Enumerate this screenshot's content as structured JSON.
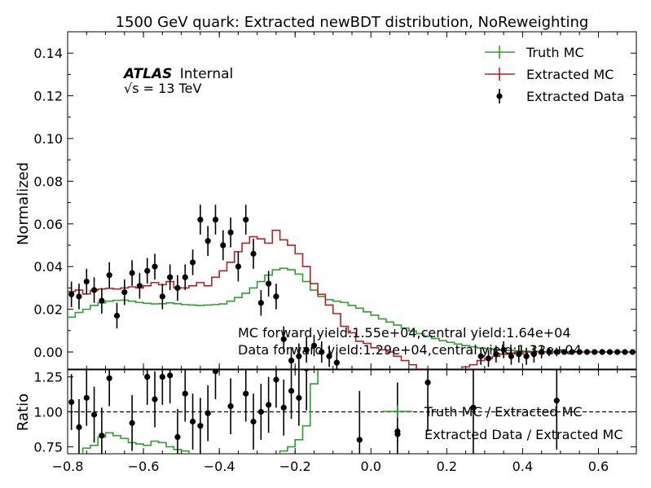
{
  "chart_data": [
    {
      "panel": "main",
      "type": "line",
      "title": "1500 GeV quark: Extracted newBDT distribution, NoReweighting",
      "xlabel": "",
      "ylabel": "Normalized",
      "xlim": [
        -0.8,
        0.7
      ],
      "ylim": [
        -0.008,
        0.15
      ],
      "x_ticks": [
        "−0.8",
        "−0.6",
        "−0.4",
        "−0.2",
        "0.0",
        "0.2",
        "0.4",
        "0.6"
      ],
      "y_ticks": [
        "0.00",
        "0.02",
        "0.04",
        "0.06",
        "0.08",
        "0.10",
        "0.12",
        "0.14"
      ],
      "legend_position": "top-right",
      "legend": [
        "Truth MC",
        "Extracted MC",
        "Extracted Data"
      ],
      "atlas_label": "ATLAS",
      "atlas_status": "Internal",
      "energy_label": "√s = 13 TeV",
      "annotations": [
        "MC forward yield:1.55e+04,central yield:1.64e+04",
        "Data forward yield:1.29e+04,central yield:1.32e+04"
      ],
      "series": [
        {
          "name": "Truth MC",
          "color": "#2ca02c",
          "style": "step",
          "bin_edges": [
            -0.8,
            -0.78,
            -0.76,
            -0.74,
            -0.72,
            -0.7,
            -0.68,
            -0.66,
            -0.64,
            -0.62,
            -0.6,
            -0.58,
            -0.56,
            -0.54,
            -0.52,
            -0.5,
            -0.48,
            -0.46,
            -0.44,
            -0.42,
            -0.4,
            -0.38,
            -0.36,
            -0.34,
            -0.32,
            -0.3,
            -0.28,
            -0.26,
            -0.24,
            -0.22,
            -0.2,
            -0.18,
            -0.16,
            -0.14,
            -0.12,
            -0.1,
            -0.08,
            -0.06,
            -0.04,
            -0.02,
            0.0,
            0.02,
            0.04,
            0.06,
            0.08,
            0.1,
            0.12,
            0.14,
            0.16,
            0.18,
            0.2,
            0.22,
            0.24,
            0.26,
            0.28,
            0.3,
            0.32,
            0.34,
            0.36,
            0.38,
            0.4,
            0.42,
            0.44,
            0.46,
            0.48,
            0.5,
            0.52,
            0.54,
            0.56,
            0.58,
            0.6,
            0.62,
            0.64,
            0.66,
            0.68,
            0.7
          ],
          "values": [
            0.0163,
            0.0185,
            0.02,
            0.0218,
            0.023,
            0.0238,
            0.0242,
            0.0243,
            0.0238,
            0.0232,
            0.0228,
            0.0225,
            0.0226,
            0.023,
            0.0226,
            0.0222,
            0.022,
            0.0218,
            0.022,
            0.0222,
            0.0225,
            0.0238,
            0.0255,
            0.0275,
            0.03,
            0.033,
            0.036,
            0.0385,
            0.0392,
            0.0385,
            0.0365,
            0.033,
            0.029,
            0.026,
            0.0245,
            0.0238,
            0.0232,
            0.0218,
            0.0205,
            0.0188,
            0.0172,
            0.0155,
            0.014,
            0.0126,
            0.0112,
            0.0098,
            0.0086,
            0.0074,
            0.0063,
            0.0053,
            0.0045,
            0.0037,
            0.003,
            0.0024,
            0.0019,
            0.0015,
            0.0012,
            0.0009,
            0.0007,
            0.0005,
            0.0004,
            0.0003,
            0.0002,
            0.0001,
            0.0001,
            0.0001,
            0.0,
            0.0,
            0.0,
            0.0,
            0.0,
            0.0,
            0.0,
            0.0,
            0.0
          ]
        },
        {
          "name": "Extracted MC",
          "color": "#b22222",
          "style": "step",
          "bin_edges": [
            -0.8,
            -0.78,
            -0.76,
            -0.74,
            -0.72,
            -0.7,
            -0.68,
            -0.66,
            -0.64,
            -0.62,
            -0.6,
            -0.58,
            -0.56,
            -0.54,
            -0.52,
            -0.5,
            -0.48,
            -0.46,
            -0.44,
            -0.42,
            -0.4,
            -0.38,
            -0.36,
            -0.34,
            -0.32,
            -0.3,
            -0.28,
            -0.26,
            -0.24,
            -0.22,
            -0.2,
            -0.18,
            -0.16,
            -0.14,
            -0.12,
            -0.1,
            -0.08,
            -0.06,
            -0.04,
            -0.02,
            0.0,
            0.02,
            0.04,
            0.06,
            0.08,
            0.1,
            0.12,
            0.14,
            0.16,
            0.18,
            0.2,
            0.22,
            0.24,
            0.26,
            0.28,
            0.3,
            0.32,
            0.34,
            0.36,
            0.38,
            0.4,
            0.42,
            0.44,
            0.46,
            0.48,
            0.5,
            0.52,
            0.54,
            0.56,
            0.58,
            0.6,
            0.62,
            0.64,
            0.66,
            0.68,
            0.7
          ],
          "values": [
            0.0283,
            0.029,
            0.0272,
            0.0288,
            0.0295,
            0.0298,
            0.0295,
            0.03,
            0.0305,
            0.03,
            0.031,
            0.0325,
            0.0315,
            0.033,
            0.03,
            0.03,
            0.031,
            0.0325,
            0.031,
            0.035,
            0.038,
            0.042,
            0.047,
            0.051,
            0.054,
            0.053,
            0.051,
            0.057,
            0.0525,
            0.05,
            0.046,
            0.04,
            0.032,
            0.027,
            0.022,
            0.018,
            0.012,
            0.009,
            0.005,
            0.004,
            0.002,
            0.001,
            0.0,
            -0.002,
            -0.004,
            -0.006,
            -0.008,
            -0.01,
            -0.012,
            -0.012,
            -0.011,
            -0.009,
            -0.007,
            -0.006,
            -0.004,
            -0.003,
            -0.002,
            -0.001,
            -0.0005,
            0.0,
            0.0,
            0.0,
            0.0,
            0.0,
            0.0,
            0.0,
            0.0,
            0.0,
            0.0,
            0.0,
            0.0,
            0.0,
            0.0,
            0.0,
            0.0
          ]
        },
        {
          "name": "Extracted Data",
          "color": "#000000",
          "style": "errorbar",
          "points": [
            {
              "x": -0.79,
              "y": 0.027,
              "err": 0.006
            },
            {
              "x": -0.77,
              "y": 0.026,
              "err": 0.006
            },
            {
              "x": -0.75,
              "y": 0.033,
              "err": 0.006
            },
            {
              "x": -0.73,
              "y": 0.029,
              "err": 0.006
            },
            {
              "x": -0.71,
              "y": 0.024,
              "err": 0.006
            },
            {
              "x": -0.69,
              "y": 0.036,
              "err": 0.006
            },
            {
              "x": -0.67,
              "y": 0.017,
              "err": 0.006
            },
            {
              "x": -0.65,
              "y": 0.028,
              "err": 0.006
            },
            {
              "x": -0.63,
              "y": 0.037,
              "err": 0.006
            },
            {
              "x": -0.61,
              "y": 0.031,
              "err": 0.006
            },
            {
              "x": -0.59,
              "y": 0.038,
              "err": 0.006
            },
            {
              "x": -0.57,
              "y": 0.04,
              "err": 0.006
            },
            {
              "x": -0.55,
              "y": 0.026,
              "err": 0.006
            },
            {
              "x": -0.53,
              "y": 0.035,
              "err": 0.006
            },
            {
              "x": -0.51,
              "y": 0.03,
              "err": 0.006
            },
            {
              "x": -0.49,
              "y": 0.035,
              "err": 0.006
            },
            {
              "x": -0.47,
              "y": 0.042,
              "err": 0.006
            },
            {
              "x": -0.45,
              "y": 0.062,
              "err": 0.007
            },
            {
              "x": -0.43,
              "y": 0.052,
              "err": 0.007
            },
            {
              "x": -0.41,
              "y": 0.062,
              "err": 0.007
            },
            {
              "x": -0.39,
              "y": 0.05,
              "err": 0.007
            },
            {
              "x": -0.37,
              "y": 0.056,
              "err": 0.007
            },
            {
              "x": -0.35,
              "y": 0.04,
              "err": 0.007
            },
            {
              "x": -0.33,
              "y": 0.062,
              "err": 0.007
            },
            {
              "x": -0.31,
              "y": 0.046,
              "err": 0.007
            },
            {
              "x": -0.29,
              "y": 0.023,
              "err": 0.006
            },
            {
              "x": -0.27,
              "y": 0.032,
              "err": 0.006
            },
            {
              "x": -0.25,
              "y": 0.026,
              "err": 0.006
            },
            {
              "x": -0.23,
              "y": 0.006,
              "err": 0.006
            },
            {
              "x": -0.21,
              "y": -0.004,
              "err": 0.006
            },
            {
              "x": -0.19,
              "y": -0.002,
              "err": 0.006
            },
            {
              "x": -0.17,
              "y": 0.001,
              "err": 0.006
            },
            {
              "x": -0.15,
              "y": 0.003,
              "err": 0.005
            },
            {
              "x": -0.13,
              "y": 0.0,
              "err": 0.005
            },
            {
              "x": -0.11,
              "y": -0.002,
              "err": 0.005
            },
            {
              "x": -0.09,
              "y": -0.005,
              "err": 0.005
            },
            {
              "x": 0.29,
              "y": -0.002,
              "err": 0.004
            },
            {
              "x": 0.31,
              "y": -0.003,
              "err": 0.004
            },
            {
              "x": 0.33,
              "y": -0.001,
              "err": 0.004
            },
            {
              "x": 0.35,
              "y": 0.001,
              "err": 0.004
            },
            {
              "x": 0.37,
              "y": -0.002,
              "err": 0.004
            },
            {
              "x": 0.39,
              "y": -0.001,
              "err": 0.004
            },
            {
              "x": 0.41,
              "y": -0.002,
              "err": 0.004
            },
            {
              "x": 0.43,
              "y": -0.001,
              "err": 0.004
            },
            {
              "x": 0.45,
              "y": 0.0,
              "err": 0.003
            },
            {
              "x": 0.47,
              "y": 0.0,
              "err": 0.002
            },
            {
              "x": 0.49,
              "y": 0.0,
              "err": 0.002
            },
            {
              "x": 0.51,
              "y": 0.0,
              "err": 0.001
            },
            {
              "x": 0.53,
              "y": 0.0,
              "err": 0.001
            },
            {
              "x": 0.55,
              "y": 0.0,
              "err": 0.001
            },
            {
              "x": 0.57,
              "y": 0.0,
              "err": 0.001
            },
            {
              "x": 0.59,
              "y": 0.0,
              "err": 0.001
            },
            {
              "x": 0.61,
              "y": 0.0,
              "err": 0.001
            },
            {
              "x": 0.63,
              "y": 0.0,
              "err": 0.001
            },
            {
              "x": 0.65,
              "y": 0.0,
              "err": 0.001
            },
            {
              "x": 0.67,
              "y": 0.0,
              "err": 0.001
            },
            {
              "x": 0.69,
              "y": 0.0,
              "err": 0.001
            }
          ]
        }
      ]
    },
    {
      "panel": "ratio",
      "type": "line",
      "xlabel": "",
      "ylabel": "Ratio",
      "xlim": [
        -0.8,
        0.7
      ],
      "ylim": [
        0.7,
        1.3
      ],
      "y_ticks": [
        "0.75",
        "1.00",
        "1.25"
      ],
      "reference_line": 1.0,
      "legend_position": "center-right",
      "legend": [
        "Truth MC / Extracted MC",
        "Extracted Data / Extracted MC"
      ],
      "series": [
        {
          "name": "Truth MC / Extracted MC",
          "color": "#2ca02c",
          "style": "step",
          "bin_edges": [
            -0.8,
            -0.78,
            -0.76,
            -0.74,
            -0.72,
            -0.7,
            -0.68,
            -0.66,
            -0.64,
            -0.62,
            -0.6,
            -0.58,
            -0.56,
            -0.54,
            -0.52,
            -0.5,
            -0.48,
            -0.46,
            -0.44,
            -0.42,
            -0.4,
            -0.38,
            -0.36,
            -0.34,
            -0.32,
            -0.3,
            -0.28,
            -0.26,
            -0.24,
            -0.22,
            -0.2,
            -0.18,
            -0.16,
            -0.14,
            -0.12,
            -0.1,
            -0.08
          ],
          "values": [
            0.58,
            0.64,
            0.74,
            0.76,
            0.82,
            0.85,
            0.83,
            0.81,
            0.78,
            0.77,
            0.76,
            0.79,
            0.78,
            0.75,
            0.73,
            0.72,
            0.68,
            0.65,
            0.62,
            0.62,
            0.6,
            0.6,
            0.58,
            0.6,
            0.62,
            0.65,
            0.7,
            0.68,
            0.72,
            0.75,
            0.8,
            0.9,
            1.2,
            1.6,
            2.0,
            2.5,
            3.0
          ]
        },
        {
          "name": "Extracted Data / Extracted MC",
          "color": "#000000",
          "style": "errorbar",
          "points": [
            {
              "x": -0.79,
              "y": 1.07,
              "err": 0.2
            },
            {
              "x": -0.77,
              "y": 0.89,
              "err": 0.2
            },
            {
              "x": -0.75,
              "y": 1.1,
              "err": 0.2
            },
            {
              "x": -0.73,
              "y": 0.98,
              "err": 0.2
            },
            {
              "x": -0.71,
              "y": 0.83,
              "err": 0.2
            },
            {
              "x": -0.69,
              "y": 1.24,
              "err": 0.2
            },
            {
              "x": -0.63,
              "y": 0.92,
              "err": 0.2
            },
            {
              "x": -0.59,
              "y": 1.25,
              "err": 0.2
            },
            {
              "x": -0.57,
              "y": 1.09,
              "err": 0.2
            },
            {
              "x": -0.55,
              "y": 1.25,
              "err": 0.2
            },
            {
              "x": -0.53,
              "y": 1.26,
              "err": 0.2
            },
            {
              "x": -0.51,
              "y": 0.82,
              "err": 0.2
            },
            {
              "x": -0.49,
              "y": 1.13,
              "err": 0.2
            },
            {
              "x": -0.47,
              "y": 0.93,
              "err": 0.2
            },
            {
              "x": -0.45,
              "y": 0.9,
              "err": 0.2
            },
            {
              "x": -0.43,
              "y": 0.99,
              "err": 0.2
            },
            {
              "x": -0.41,
              "y": 1.29,
              "err": 0.2
            },
            {
              "x": -0.37,
              "y": 1.04,
              "err": 0.2
            },
            {
              "x": -0.33,
              "y": 1.13,
              "err": 0.2
            },
            {
              "x": -0.31,
              "y": 0.93,
              "err": 0.2
            },
            {
              "x": -0.29,
              "y": 1.0,
              "err": 0.2
            },
            {
              "x": -0.27,
              "y": 1.05,
              "err": 0.2
            },
            {
              "x": -0.25,
              "y": 1.23,
              "err": 0.2
            },
            {
              "x": -0.23,
              "y": 1.03,
              "err": 0.2
            },
            {
              "x": -0.21,
              "y": 1.15,
              "err": 0.2
            },
            {
              "x": -0.19,
              "y": 1.1,
              "err": 0.2
            },
            {
              "x": -0.17,
              "y": 1.31,
              "err": 0.3
            },
            {
              "x": -0.03,
              "y": 0.8,
              "err": 0.35
            },
            {
              "x": 0.07,
              "y": 0.86,
              "err": 0.35
            },
            {
              "x": 0.15,
              "y": 1.21,
              "err": 0.35
            },
            {
              "x": 0.27,
              "y": 1.03,
              "err": 0.35
            },
            {
              "x": 0.49,
              "y": 1.08,
              "err": 0.35
            }
          ]
        }
      ]
    }
  ]
}
